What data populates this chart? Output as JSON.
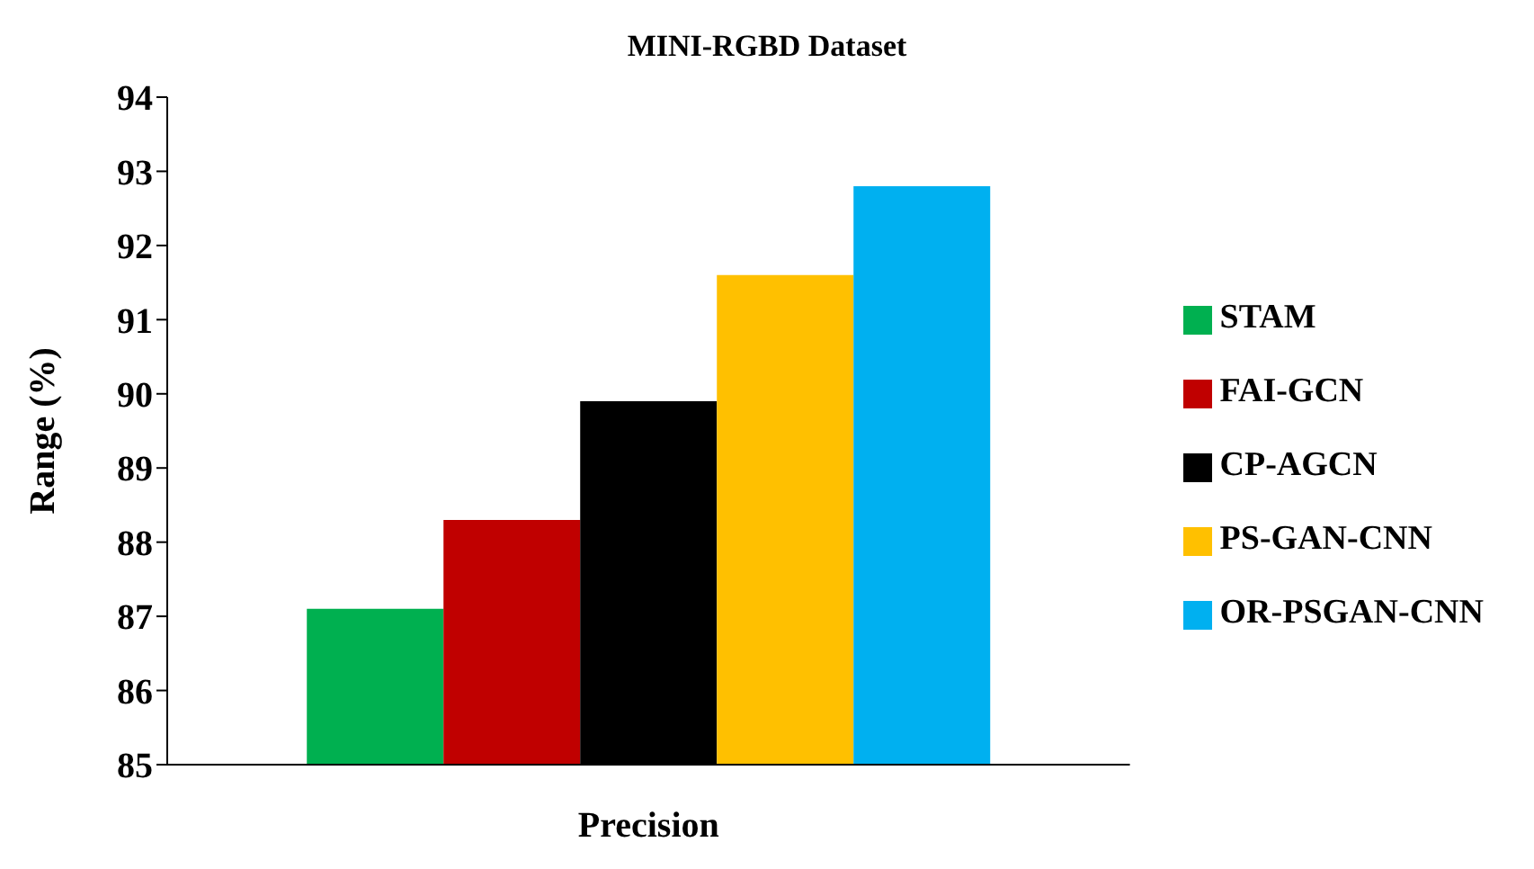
{
  "chart_data": {
    "type": "bar",
    "title": "MINI-RGBD Dataset",
    "xlabel": "Precision",
    "ylabel": "Range (%)",
    "categories": [
      null
    ],
    "series": [
      {
        "name": "STAM",
        "color": "#00b050",
        "values": [
          87.1
        ]
      },
      {
        "name": "FAI-GCN",
        "color": "#c00000",
        "values": [
          88.3
        ]
      },
      {
        "name": "CP-AGCN",
        "color": "#000000",
        "values": [
          89.9
        ]
      },
      {
        "name": "PS-GAN-CNN",
        "color": "#ffc000",
        "values": [
          91.6
        ]
      },
      {
        "name": "OR-PSGAN-CNN",
        "color": "#00b0f0",
        "values": [
          92.8
        ]
      }
    ],
    "ylim": [
      85,
      94
    ],
    "yticks": [
      85,
      86,
      87,
      88,
      89,
      90,
      91,
      92,
      93,
      94
    ],
    "grid": false,
    "legend": "right"
  }
}
